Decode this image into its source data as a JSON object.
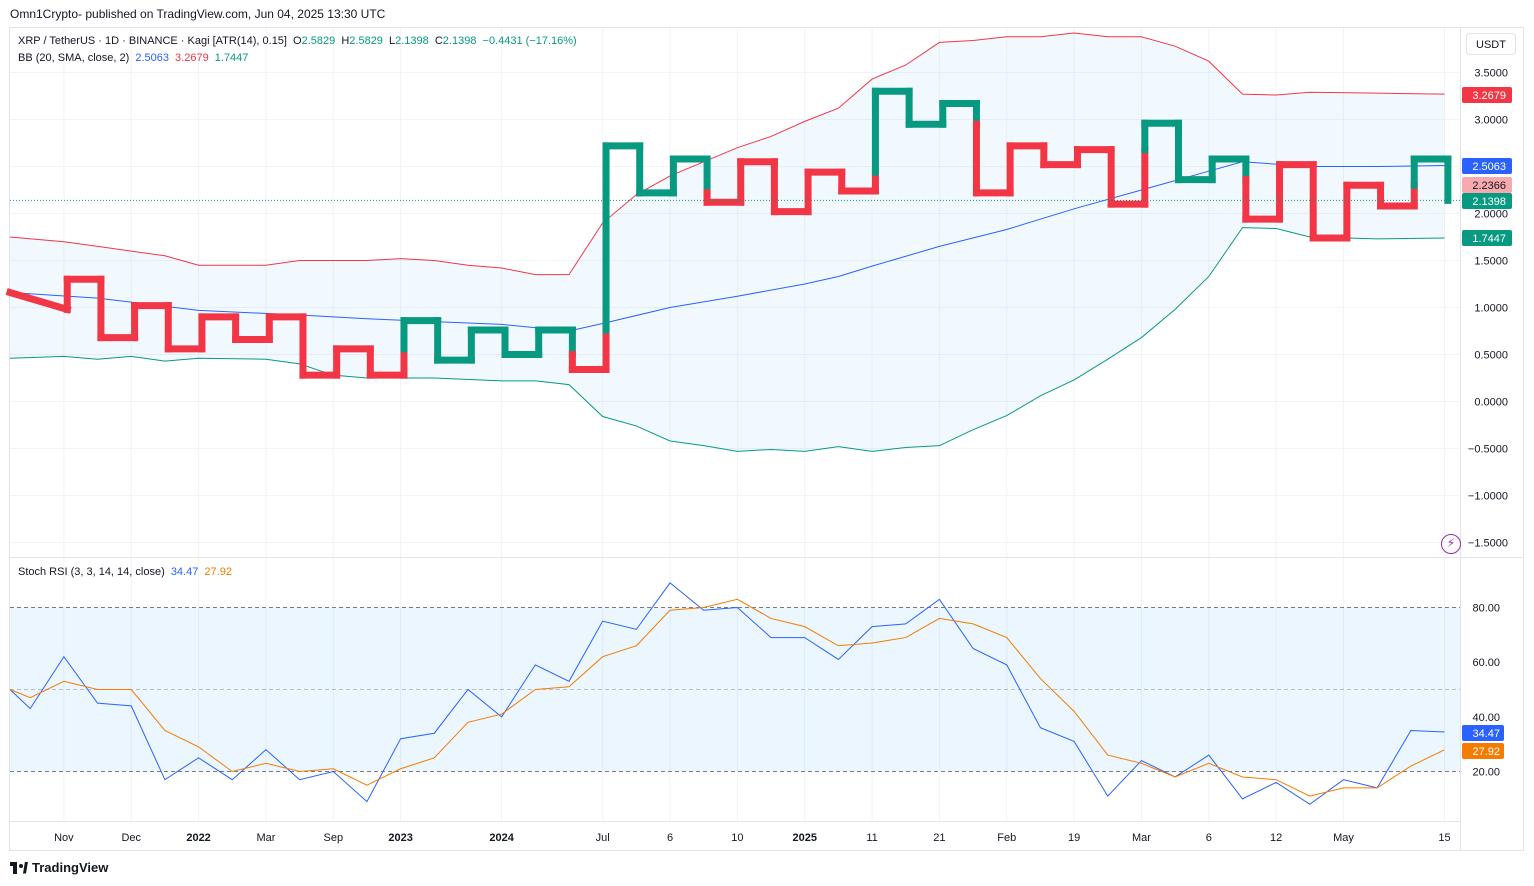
{
  "header": {
    "published": "Omn1Crypto- published on TradingView.com, Jun 04, 2025 13:30 UTC"
  },
  "legend_main": {
    "symbol": "XRP / TetherUS · 1D · BINANCE · Kagi [ATR(14), 0.15]",
    "o_label": "O",
    "o_value": "2.5829",
    "h_label": "H",
    "h_value": "2.5829",
    "l_label": "L",
    "l_value": "2.1398",
    "c_label": "C",
    "c_value": "2.1398",
    "change": "−0.4431 (−17.16%)"
  },
  "legend_bb": {
    "name": "BB (20, SMA, close, 2)",
    "basis": "2.5063",
    "upper": "3.2679",
    "lower": "1.7447"
  },
  "legend_stoch": {
    "name": "Stoch RSI (3, 3, 14, 14, close)",
    "k": "34.47",
    "d": "27.92"
  },
  "currency_button": "USDT",
  "brand": "TradingView",
  "colors": {
    "up": "#089981",
    "down": "#f23645",
    "basis": "#2962ff",
    "upper_band": "#f23645",
    "lower_band": "#089981",
    "band_fill": "#2196f3",
    "stoch_k": "#2962ff",
    "stoch_d": "#f57c00"
  },
  "chart_data": [
    {
      "type": "line",
      "subtype": "kagi",
      "y_axis_labels": [
        "3.5000",
        "3.0000",
        "2.5000",
        "2.0000",
        "1.5000",
        "1.0000",
        "0.5000",
        "0.0000",
        "−0.5000",
        "−1.0000",
        "−1.5000"
      ],
      "y_tick_values": [
        3.5,
        3.0,
        2.5,
        2.0,
        1.5,
        1.0,
        0.5,
        0.0,
        -0.5,
        -1.0,
        -1.5
      ],
      "ylim": [
        -1.5,
        3.9
      ],
      "x_tick_labels": [
        "Nov",
        "Dec",
        "2022",
        "Mar",
        "Sep",
        "2023",
        "2024",
        "Jul",
        "6",
        "10",
        "2025",
        "11",
        "21",
        "Feb",
        "19",
        "Mar",
        "6",
        "12",
        "May",
        "15"
      ],
      "x_tick_index": [
        1.6,
        3.6,
        5.6,
        7.6,
        9.6,
        11.6,
        14.6,
        17.6,
        19.6,
        21.6,
        23.6,
        25.6,
        27.6,
        29.6,
        31.6,
        33.6,
        35.6,
        37.6,
        39.6,
        42.6
      ],
      "kagi": [
        {
          "x": 0,
          "y": 1.16,
          "t": "start"
        },
        {
          "x": 1.7,
          "y": 0.98
        },
        {
          "x": 1.7,
          "y": 1.3
        },
        {
          "x": 2.7,
          "y": 1.3
        },
        {
          "x": 2.7,
          "y": 0.68
        },
        {
          "x": 3.7,
          "y": 0.68
        },
        {
          "x": 3.7,
          "y": 1.02
        },
        {
          "x": 4.7,
          "y": 1.02
        },
        {
          "x": 4.7,
          "y": 0.56
        },
        {
          "x": 5.7,
          "y": 0.56
        },
        {
          "x": 5.7,
          "y": 0.9
        },
        {
          "x": 6.7,
          "y": 0.9
        },
        {
          "x": 6.7,
          "y": 0.66
        },
        {
          "x": 7.7,
          "y": 0.66
        },
        {
          "x": 7.7,
          "y": 0.9
        },
        {
          "x": 8.7,
          "y": 0.9
        },
        {
          "x": 8.7,
          "y": 0.28
        },
        {
          "x": 9.7,
          "y": 0.28
        },
        {
          "x": 9.7,
          "y": 0.56
        },
        {
          "x": 10.7,
          "y": 0.56
        },
        {
          "x": 10.7,
          "y": 0.28
        },
        {
          "x": 11.7,
          "y": 0.28
        },
        {
          "x": 11.7,
          "y": 0.86
        },
        {
          "x": 12.7,
          "y": 0.86
        },
        {
          "x": 12.7,
          "y": 0.44
        },
        {
          "x": 13.7,
          "y": 0.44
        },
        {
          "x": 13.7,
          "y": 0.76
        },
        {
          "x": 14.7,
          "y": 0.76
        },
        {
          "x": 14.7,
          "y": 0.5
        },
        {
          "x": 15.7,
          "y": 0.5
        },
        {
          "x": 15.7,
          "y": 0.76
        },
        {
          "x": 16.7,
          "y": 0.76
        },
        {
          "x": 16.7,
          "y": 0.34
        },
        {
          "x": 17.7,
          "y": 0.34
        },
        {
          "x": 17.7,
          "y": 2.72
        },
        {
          "x": 18.7,
          "y": 2.72
        },
        {
          "x": 18.7,
          "y": 2.22
        },
        {
          "x": 19.7,
          "y": 2.22
        },
        {
          "x": 19.7,
          "y": 2.58
        },
        {
          "x": 20.7,
          "y": 2.58
        },
        {
          "x": 20.7,
          "y": 2.12
        },
        {
          "x": 21.7,
          "y": 2.12
        },
        {
          "x": 21.7,
          "y": 2.55
        },
        {
          "x": 22.7,
          "y": 2.55
        },
        {
          "x": 22.7,
          "y": 2.02
        },
        {
          "x": 23.7,
          "y": 2.02
        },
        {
          "x": 23.7,
          "y": 2.44
        },
        {
          "x": 24.7,
          "y": 2.44
        },
        {
          "x": 24.7,
          "y": 2.24
        },
        {
          "x": 25.7,
          "y": 2.24
        },
        {
          "x": 25.7,
          "y": 3.3
        },
        {
          "x": 26.7,
          "y": 3.3
        },
        {
          "x": 26.7,
          "y": 2.95
        },
        {
          "x": 27.7,
          "y": 2.95
        },
        {
          "x": 27.7,
          "y": 3.17
        },
        {
          "x": 28.7,
          "y": 3.17
        },
        {
          "x": 28.7,
          "y": 2.22
        },
        {
          "x": 29.7,
          "y": 2.22
        },
        {
          "x": 29.7,
          "y": 2.72
        },
        {
          "x": 30.7,
          "y": 2.72
        },
        {
          "x": 30.7,
          "y": 2.52
        },
        {
          "x": 31.7,
          "y": 2.52
        },
        {
          "x": 31.7,
          "y": 2.68
        },
        {
          "x": 32.7,
          "y": 2.68
        },
        {
          "x": 32.7,
          "y": 2.1
        },
        {
          "x": 33.7,
          "y": 2.1
        },
        {
          "x": 33.7,
          "y": 2.96
        },
        {
          "x": 34.7,
          "y": 2.96
        },
        {
          "x": 34.7,
          "y": 2.36
        },
        {
          "x": 35.7,
          "y": 2.36
        },
        {
          "x": 35.7,
          "y": 2.58
        },
        {
          "x": 36.7,
          "y": 2.58
        },
        {
          "x": 36.7,
          "y": 1.94
        },
        {
          "x": 37.7,
          "y": 1.94
        },
        {
          "x": 37.7,
          "y": 2.52
        },
        {
          "x": 38.7,
          "y": 2.52
        },
        {
          "x": 38.7,
          "y": 1.74
        },
        {
          "x": 39.7,
          "y": 1.74
        },
        {
          "x": 39.7,
          "y": 2.3
        },
        {
          "x": 40.7,
          "y": 2.3
        },
        {
          "x": 40.7,
          "y": 2.08
        },
        {
          "x": 41.7,
          "y": 2.08
        },
        {
          "x": 41.7,
          "y": 2.58
        },
        {
          "x": 42.7,
          "y": 2.58
        },
        {
          "x": 42.7,
          "y": 2.14
        }
      ],
      "bb_upper": [
        [
          0,
          1.75
        ],
        [
          1.6,
          1.7
        ],
        [
          2.6,
          1.65
        ],
        [
          3.6,
          1.6
        ],
        [
          4.6,
          1.55
        ],
        [
          5.6,
          1.45
        ],
        [
          7.6,
          1.45
        ],
        [
          8.6,
          1.5
        ],
        [
          10.6,
          1.5
        ],
        [
          11.6,
          1.52
        ],
        [
          12.6,
          1.5
        ],
        [
          13.6,
          1.45
        ],
        [
          14.6,
          1.42
        ],
        [
          15.6,
          1.35
        ],
        [
          16.6,
          1.35
        ],
        [
          17.6,
          1.9
        ],
        [
          18.6,
          2.2
        ],
        [
          19.6,
          2.4
        ],
        [
          20.6,
          2.55
        ],
        [
          21.6,
          2.7
        ],
        [
          22.6,
          2.82
        ],
        [
          23.6,
          2.98
        ],
        [
          24.6,
          3.12
        ],
        [
          25.6,
          3.43
        ],
        [
          26.6,
          3.58
        ],
        [
          27.6,
          3.82
        ],
        [
          28.6,
          3.84
        ],
        [
          29.6,
          3.88
        ],
        [
          30.6,
          3.88
        ],
        [
          31.6,
          3.92
        ],
        [
          32.6,
          3.88
        ],
        [
          33.6,
          3.88
        ],
        [
          34.6,
          3.78
        ],
        [
          35.6,
          3.62
        ],
        [
          36.6,
          3.27
        ],
        [
          37.6,
          3.26
        ],
        [
          38.6,
          3.29
        ],
        [
          40.6,
          3.28
        ],
        [
          42.6,
          3.27
        ]
      ],
      "bb_basis": [
        [
          0,
          1.16
        ],
        [
          2.6,
          1.1
        ],
        [
          5.6,
          0.97
        ],
        [
          8.6,
          0.92
        ],
        [
          10.6,
          0.88
        ],
        [
          12.6,
          0.85
        ],
        [
          14.6,
          0.82
        ],
        [
          16.6,
          0.75
        ],
        [
          17.6,
          0.83
        ],
        [
          19.6,
          1.0
        ],
        [
          21.6,
          1.12
        ],
        [
          23.6,
          1.25
        ],
        [
          24.6,
          1.33
        ],
        [
          25.6,
          1.44
        ],
        [
          27.6,
          1.65
        ],
        [
          29.6,
          1.83
        ],
        [
          31.6,
          2.05
        ],
        [
          33.6,
          2.25
        ],
        [
          35.6,
          2.45
        ],
        [
          36.6,
          2.55
        ],
        [
          38.6,
          2.5
        ],
        [
          40.6,
          2.5
        ],
        [
          42.6,
          2.51
        ]
      ],
      "bb_lower": [
        [
          0,
          0.46
        ],
        [
          1.6,
          0.48
        ],
        [
          2.6,
          0.45
        ],
        [
          3.6,
          0.48
        ],
        [
          4.6,
          0.43
        ],
        [
          5.6,
          0.46
        ],
        [
          7.6,
          0.45
        ],
        [
          8.6,
          0.4
        ],
        [
          9.6,
          0.28
        ],
        [
          10.6,
          0.25
        ],
        [
          11.6,
          0.25
        ],
        [
          12.6,
          0.25
        ],
        [
          14.6,
          0.22
        ],
        [
          15.6,
          0.22
        ],
        [
          16.6,
          0.18
        ],
        [
          17.6,
          -0.16
        ],
        [
          18.6,
          -0.26
        ],
        [
          19.6,
          -0.42
        ],
        [
          20.6,
          -0.47
        ],
        [
          21.6,
          -0.53
        ],
        [
          22.6,
          -0.51
        ],
        [
          23.6,
          -0.53
        ],
        [
          24.6,
          -0.48
        ],
        [
          25.6,
          -0.53
        ],
        [
          26.6,
          -0.49
        ],
        [
          27.6,
          -0.47
        ],
        [
          28.6,
          -0.3
        ],
        [
          29.6,
          -0.15
        ],
        [
          30.6,
          0.06
        ],
        [
          31.6,
          0.23
        ],
        [
          32.6,
          0.45
        ],
        [
          33.6,
          0.68
        ],
        [
          34.6,
          0.98
        ],
        [
          35.6,
          1.33
        ],
        [
          36.6,
          1.85
        ],
        [
          37.6,
          1.84
        ],
        [
          38.6,
          1.75
        ],
        [
          40.6,
          1.73
        ],
        [
          42.6,
          1.74
        ]
      ],
      "last_price": 2.1398,
      "price_labels": {
        "upper": "3.2679",
        "basis": "2.5063",
        "prev": "2.2366",
        "last": "2.1398",
        "lower": "1.7447"
      },
      "price_label_values": {
        "upper": 3.2679,
        "basis": 2.5063,
        "prev": 2.2366,
        "last": 2.1398,
        "lower": 1.7447
      }
    },
    {
      "type": "line",
      "title": "Stoch RSI (3, 3, 14, 14, close)",
      "y_axis_labels": [
        "80.00",
        "60.00",
        "40.00",
        "20.00"
      ],
      "y_tick_values": [
        80,
        60,
        40,
        20
      ],
      "ylim": [
        0,
        100
      ],
      "band": [
        20,
        80
      ],
      "midline": 50,
      "series": [
        {
          "name": "K",
          "values": [
            [
              0,
              50
            ],
            [
              0.6,
              43
            ],
            [
              1.6,
              62
            ],
            [
              2.6,
              45
            ],
            [
              3.6,
              44
            ],
            [
              4.6,
              17
            ],
            [
              5.6,
              25
            ],
            [
              6.6,
              17
            ],
            [
              7.6,
              28
            ],
            [
              8.6,
              17
            ],
            [
              9.6,
              20
            ],
            [
              10.6,
              9
            ],
            [
              11.6,
              32
            ],
            [
              12.6,
              34
            ],
            [
              13.6,
              50
            ],
            [
              14.6,
              40
            ],
            [
              15.6,
              59
            ],
            [
              16.6,
              53
            ],
            [
              17.6,
              75
            ],
            [
              18.6,
              72
            ],
            [
              19.6,
              89
            ],
            [
              20.6,
              79
            ],
            [
              21.6,
              80
            ],
            [
              22.6,
              69
            ],
            [
              23.6,
              69
            ],
            [
              24.6,
              61
            ],
            [
              25.6,
              73
            ],
            [
              26.6,
              74
            ],
            [
              27.6,
              83
            ],
            [
              28.6,
              65
            ],
            [
              29.6,
              59
            ],
            [
              30.6,
              36
            ],
            [
              31.6,
              31
            ],
            [
              32.6,
              11
            ],
            [
              33.6,
              24
            ],
            [
              34.6,
              18
            ],
            [
              35.6,
              26
            ],
            [
              36.6,
              10
            ],
            [
              37.6,
              16
            ],
            [
              38.6,
              8
            ],
            [
              39.6,
              17
            ],
            [
              40.6,
              14
            ],
            [
              41.6,
              35
            ],
            [
              42.6,
              34.47
            ]
          ]
        },
        {
          "name": "D",
          "values": [
            [
              0,
              50
            ],
            [
              0.6,
              47
            ],
            [
              1.6,
              53
            ],
            [
              2.6,
              50
            ],
            [
              3.6,
              50
            ],
            [
              4.6,
              35
            ],
            [
              5.6,
              29
            ],
            [
              6.6,
              20
            ],
            [
              7.6,
              23
            ],
            [
              8.6,
              20
            ],
            [
              9.6,
              21
            ],
            [
              10.6,
              15
            ],
            [
              11.6,
              21
            ],
            [
              12.6,
              25
            ],
            [
              13.6,
              38
            ],
            [
              14.6,
              41
            ],
            [
              15.6,
              50
            ],
            [
              16.6,
              51
            ],
            [
              17.6,
              62
            ],
            [
              18.6,
              66
            ],
            [
              19.6,
              79
            ],
            [
              20.6,
              80
            ],
            [
              21.6,
              83
            ],
            [
              22.6,
              76
            ],
            [
              23.6,
              73
            ],
            [
              24.6,
              66
            ],
            [
              25.6,
              67
            ],
            [
              26.6,
              69
            ],
            [
              27.6,
              76
            ],
            [
              28.6,
              74
            ],
            [
              29.6,
              69
            ],
            [
              30.6,
              54
            ],
            [
              31.6,
              42
            ],
            [
              32.6,
              26
            ],
            [
              33.6,
              23
            ],
            [
              34.6,
              18
            ],
            [
              35.6,
              23
            ],
            [
              36.6,
              18
            ],
            [
              37.6,
              17
            ],
            [
              38.6,
              11
            ],
            [
              39.6,
              14
            ],
            [
              40.6,
              14
            ],
            [
              41.6,
              22
            ],
            [
              42.6,
              27.92
            ]
          ]
        }
      ],
      "price_labels": {
        "k": "34.47",
        "d": "27.92"
      },
      "price_label_values": {
        "k": 34.47,
        "d": 27.92
      }
    }
  ]
}
